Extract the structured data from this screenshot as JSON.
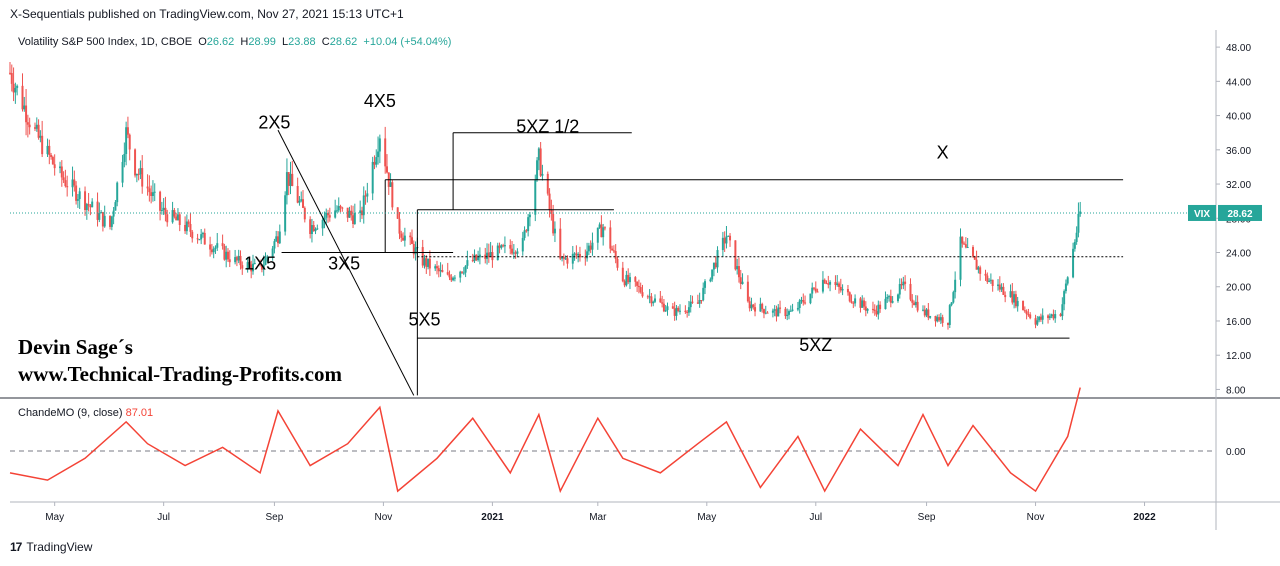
{
  "header": {
    "published": "X-Sequentials published on TradingView.com, Nov 27, 2021 15:13 UTC+1"
  },
  "legend": {
    "symbol": "Volatility S&P 500 Index, 1D, CBOE",
    "open_label": "O",
    "open": "26.62",
    "high_label": "H",
    "high": "28.99",
    "low_label": "L",
    "low": "23.88",
    "close_label": "C",
    "close": "28.62",
    "change": "+10.04 (+54.04%)"
  },
  "indicator_legend": {
    "name": "ChandeMO (9, close)",
    "value": "87.01"
  },
  "watermark": {
    "line1": "Devin Sage´s",
    "line2": "www.Technical-Trading-Profits.com"
  },
  "footer": {
    "brand": "TradingView",
    "logo_glyph": "17"
  },
  "colors": {
    "up": "#26a69a",
    "down": "#ef5350",
    "cmo": "#f44336",
    "price_badge": "#26a69a",
    "annotation": "#000000"
  },
  "chart_data": [
    {
      "type": "candlestick",
      "title": "Volatility S&P 500 Index, 1D, CBOE",
      "ylim": [
        7,
        50
      ],
      "y_ticks": [
        "48.00",
        "44.00",
        "40.00",
        "36.00",
        "32.00",
        "28.00",
        "24.00",
        "20.00",
        "16.00",
        "12.00",
        "8.00"
      ],
      "y_tick_values": [
        48,
        44,
        40,
        36,
        32,
        28,
        24,
        20,
        16,
        12,
        8
      ],
      "x_ticks": [
        "May",
        "Jul",
        "Sep",
        "Nov",
        "2021",
        "Mar",
        "May",
        "Jul",
        "Sep",
        "Nov",
        "2022"
      ],
      "x_tick_dates": [
        "2020-05-01",
        "2020-07-01",
        "2020-09-01",
        "2020-11-01",
        "2021-01-01",
        "2021-03-01",
        "2021-05-01",
        "2021-07-01",
        "2021-09-01",
        "2021-11-01",
        "2022-01-01"
      ],
      "x_range": [
        "2020-04-06",
        "2022-02-10"
      ],
      "last_price": {
        "label": "VIX",
        "value": 28.62
      },
      "series": [
        {
          "x": [
            "2020-04-06",
            "2020-04-20",
            "2020-05-04",
            "2020-05-18",
            "2020-06-01",
            "2020-06-10",
            "2020-06-15",
            "2020-06-29",
            "2020-07-13",
            "2020-07-27",
            "2020-08-10",
            "2020-08-24",
            "2020-09-03",
            "2020-09-08",
            "2020-09-21",
            "2020-10-05",
            "2020-10-19",
            "2020-10-30",
            "2020-11-09",
            "2020-11-23",
            "2020-12-07",
            "2020-12-21",
            "2021-01-04",
            "2021-01-18",
            "2021-01-27",
            "2021-02-08",
            "2021-02-22",
            "2021-03-04",
            "2021-03-15",
            "2021-03-29",
            "2021-04-12",
            "2021-04-26",
            "2021-05-12",
            "2021-05-24",
            "2021-06-07",
            "2021-06-18",
            "2021-07-06",
            "2021-07-19",
            "2021-08-02",
            "2021-08-19",
            "2021-08-30",
            "2021-09-13",
            "2021-09-20",
            "2021-10-04",
            "2021-10-18",
            "2021-11-01",
            "2021-11-15",
            "2021-11-26"
          ],
          "y": [
            45,
            38,
            33,
            30,
            27,
            38,
            34,
            29,
            27,
            25,
            23,
            22,
            26,
            33,
            27,
            29,
            28,
            38,
            27,
            23,
            21,
            23,
            24,
            25,
            35,
            23,
            24,
            27,
            21,
            19,
            17,
            18,
            26,
            18,
            17,
            17,
            21,
            19,
            17,
            20,
            17,
            16,
            25,
            21,
            19,
            16,
            17,
            28.62
          ]
        }
      ],
      "annotations": [
        {
          "text": "2X5",
          "date": "2020-09-01",
          "price": 38.5
        },
        {
          "text": "1X5",
          "date": "2020-08-24",
          "price": 22.0
        },
        {
          "text": "3X5",
          "date": "2020-10-10",
          "price": 22.0
        },
        {
          "text": "4X5",
          "date": "2020-10-30",
          "price": 41.0
        },
        {
          "text": "5X5",
          "date": "2020-11-24",
          "price": 15.5
        },
        {
          "text": "5XZ 1/2",
          "date": "2021-02-01",
          "price": 38.0
        },
        {
          "text": "X",
          "date": "2021-09-10",
          "price": 35.0
        },
        {
          "text": "5XZ",
          "date": "2021-07-01",
          "price": 12.5
        }
      ],
      "levels": [
        {
          "price": 38.0,
          "from": "2020-12-10",
          "to": "2021-03-20"
        },
        {
          "price": 32.5,
          "from": "2020-11-02",
          "to": "2021-12-20"
        },
        {
          "price": 29.0,
          "from": "2020-11-20",
          "to": "2021-03-10"
        },
        {
          "price": 24.0,
          "from": "2020-09-05",
          "to": "2020-12-10"
        },
        {
          "price": 23.5,
          "from": "2020-11-20",
          "to": "2021-12-20",
          "style": "dotted"
        },
        {
          "price": 14.0,
          "from": "2020-11-20",
          "to": "2021-11-20"
        }
      ]
    },
    {
      "type": "line",
      "title": "ChandeMO (9, close)",
      "ylim": [
        -70,
        70
      ],
      "y_ticks": [
        "0.00"
      ],
      "y_tick_values": [
        0
      ],
      "series": [
        {
          "x": [
            "2020-04-06",
            "2020-04-27",
            "2020-05-18",
            "2020-06-10",
            "2020-06-22",
            "2020-07-13",
            "2020-08-03",
            "2020-08-24",
            "2020-09-03",
            "2020-09-21",
            "2020-10-12",
            "2020-10-30",
            "2020-11-09",
            "2020-12-01",
            "2020-12-21",
            "2021-01-11",
            "2021-01-27",
            "2021-02-08",
            "2021-03-01",
            "2021-03-15",
            "2021-04-05",
            "2021-04-26",
            "2021-05-12",
            "2021-05-31",
            "2021-06-21",
            "2021-07-06",
            "2021-07-26",
            "2021-08-16",
            "2021-08-30",
            "2021-09-13",
            "2021-09-27",
            "2021-10-18",
            "2021-11-01",
            "2021-11-19",
            "2021-11-26"
          ],
          "y": [
            -30,
            -40,
            -10,
            40,
            10,
            -20,
            5,
            -30,
            55,
            -20,
            10,
            60,
            -55,
            -10,
            45,
            -30,
            50,
            -55,
            45,
            -10,
            -30,
            10,
            40,
            -50,
            20,
            -55,
            30,
            -20,
            50,
            -20,
            35,
            -30,
            -55,
            20,
            87.01
          ]
        }
      ]
    }
  ]
}
